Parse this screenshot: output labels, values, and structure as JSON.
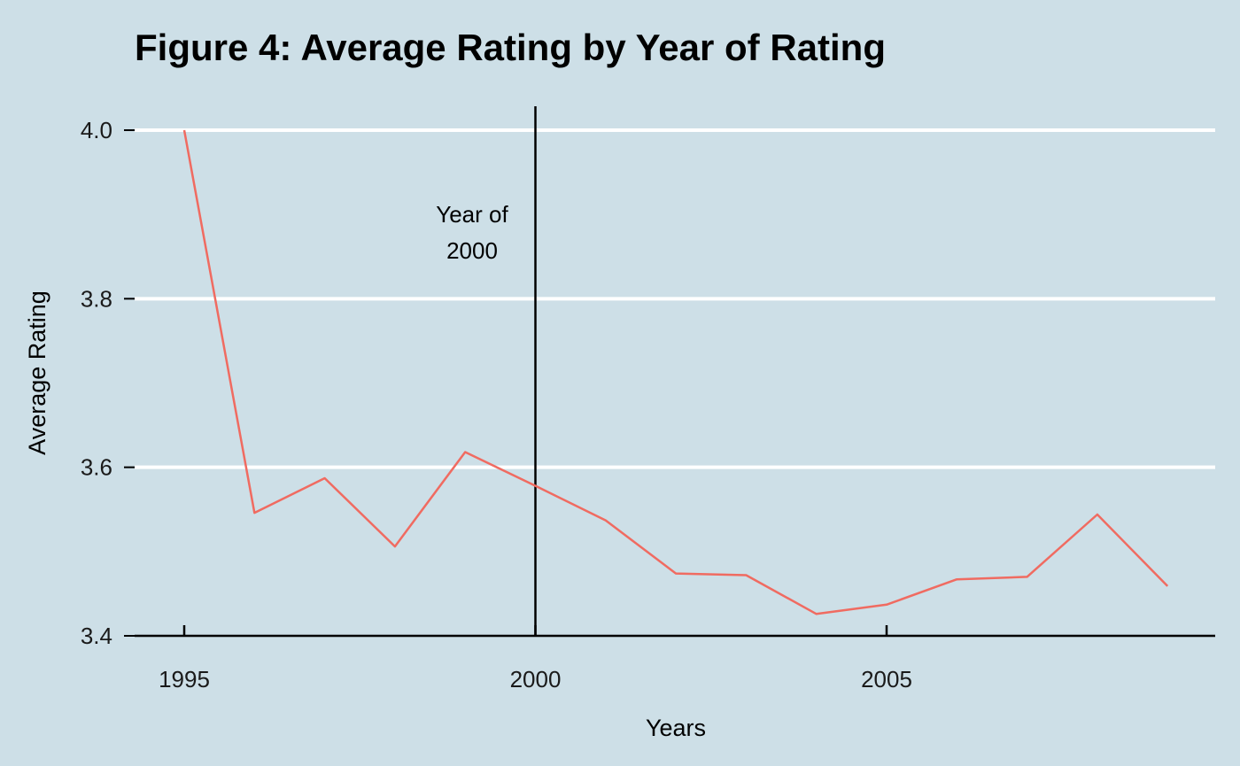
{
  "chart_data": {
    "type": "line",
    "title": "Figure 4: Average Rating by Year of Rating",
    "xlabel": "Years",
    "ylabel": "Average Rating",
    "xlim": [
      1994.3,
      2009.2
    ],
    "ylim": [
      3.4,
      4.03
    ],
    "x_ticks": [
      1995,
      2000,
      2005
    ],
    "y_ticks": [
      3.4,
      3.6,
      3.8,
      4.0
    ],
    "x_tick_labels": [
      "1995",
      "2000",
      "2005"
    ],
    "y_tick_labels": [
      "3.4",
      "3.6",
      "3.8",
      "4.0"
    ],
    "grid": "horizontal major lines (white)",
    "series": [
      {
        "color": "#f06b61",
        "x": [
          1995,
          1996,
          1997,
          1998,
          1999,
          2000,
          2001,
          2002,
          2003,
          2004,
          2005,
          2006,
          2007,
          2008,
          2009
        ],
        "values": [
          4.0,
          3.546,
          3.587,
          3.506,
          3.618,
          3.578,
          3.537,
          3.474,
          3.472,
          3.426,
          3.437,
          3.467,
          3.47,
          3.544,
          3.459
        ]
      }
    ],
    "annotations": [
      {
        "type": "vline",
        "x": 2000,
        "color": "#000000"
      },
      {
        "type": "text",
        "line1": "Year of",
        "line2": "2000"
      }
    ]
  }
}
